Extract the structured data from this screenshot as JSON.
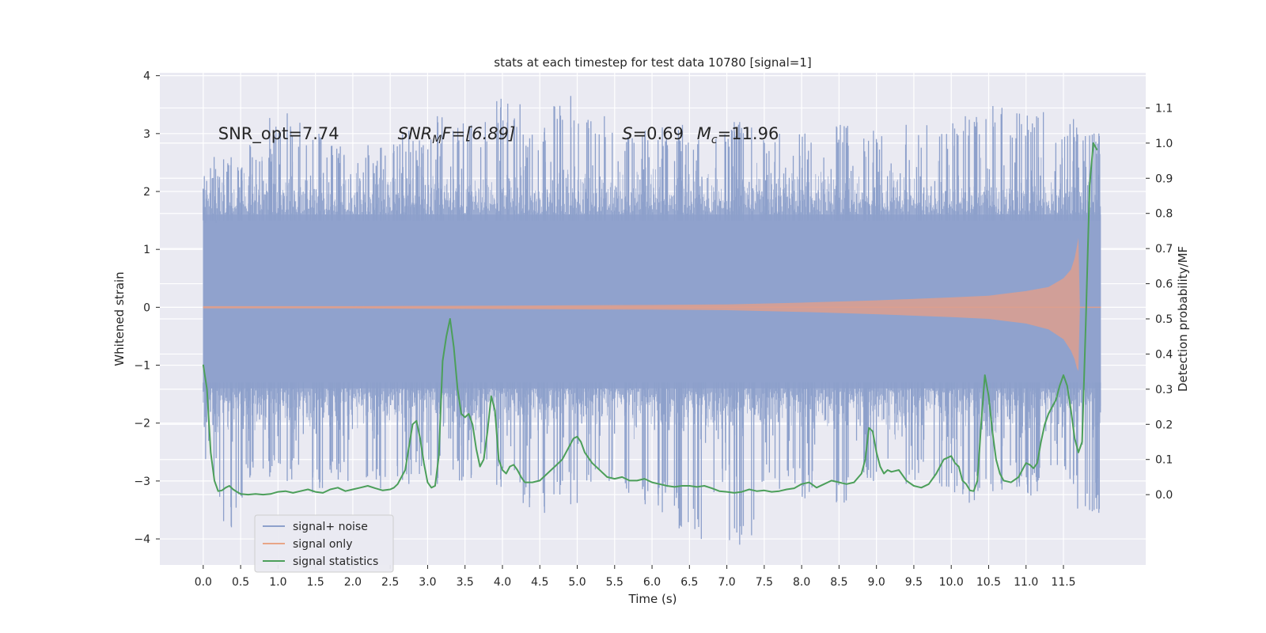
{
  "chart_data": {
    "type": "line",
    "title": "stats at each timestep for test data 10780 [signal=1]",
    "xlabel": "Time (s)",
    "ylabel": "Whitened strain",
    "ylabel_right": "Detection probability/MF",
    "xlim": [
      -0.58,
      12.6
    ],
    "ylim": [
      -4.45,
      4.05
    ],
    "ylim_right": [
      -0.2,
      1.2
    ],
    "xticks": [
      0.0,
      0.5,
      1.0,
      1.5,
      2.0,
      2.5,
      3.0,
      3.5,
      4.0,
      4.5,
      5.0,
      5.5,
      6.0,
      6.5,
      7.0,
      7.5,
      8.0,
      8.5,
      9.0,
      9.5,
      10.0,
      10.5,
      11.0,
      11.5
    ],
    "xtick_labels": [
      "0.0",
      "0.5",
      "1.0",
      "1.5",
      "2.0",
      "2.5",
      "3.0",
      "3.5",
      "4.0",
      "4.5",
      "5.0",
      "5.5",
      "6.0",
      "6.5",
      "7.0",
      "7.5",
      "8.0",
      "8.5",
      "9.0",
      "9.5",
      "10.0",
      "10.5",
      "11.0",
      "11.5"
    ],
    "yticks": [
      4,
      3,
      2,
      1,
      0,
      -1,
      -2,
      -3,
      -4
    ],
    "ytick_labels": [
      "4",
      "3",
      "2",
      "1",
      "0",
      "−1",
      "−2",
      "−3",
      "−4"
    ],
    "yticks_right": [
      1.1,
      1.0,
      0.9,
      0.8,
      0.7,
      0.6,
      0.5,
      0.4,
      0.3,
      0.2,
      0.1,
      0.0
    ],
    "ytick_right_labels": [
      "1.1",
      "1.0",
      "0.9",
      "0.8",
      "0.7",
      "0.6",
      "0.5",
      "0.4",
      "0.3",
      "0.2",
      "0.1",
      "0.0"
    ],
    "annotations": [
      {
        "text": "SNR_opt=7.74",
        "x": 0.2,
        "y": 2.9
      },
      {
        "text": "SNR",
        "sub": "M",
        "rest": "F=[6.89]",
        "x": 2.6,
        "y": 2.9
      },
      {
        "text": "S",
        "rest": "=0.69",
        "x": 5.6,
        "y": 2.9
      },
      {
        "text": "M",
        "sub": "c",
        "rest": "=11.96",
        "x": 6.6,
        "y": 2.9
      }
    ],
    "legend": {
      "position": "lower-left",
      "entries": [
        {
          "label": "signal+ noise",
          "color": "#8da0cb"
        },
        {
          "label": "signal only",
          "color": "#e8a587"
        },
        {
          "label": "signal statistics",
          "color": "#4c9f5a"
        }
      ]
    },
    "grid": true,
    "series": [
      {
        "name": "signal+ noise",
        "axis": "left",
        "style": "dense-noise-band",
        "t_range": [
          0.0,
          12.0
        ],
        "core_band": [
          -1.4,
          1.6
        ],
        "extreme_range": [
          -4.1,
          3.7
        ],
        "extreme_samples": [
          [
            0.0,
            1.4,
            -3.05
          ],
          [
            0.03,
            2.4,
            -2.2
          ],
          [
            0.35,
            2.6,
            -3.8
          ],
          [
            0.75,
            2.85,
            -3.0
          ],
          [
            1.05,
            3.35,
            -3.0
          ],
          [
            1.45,
            3.2,
            -3.2
          ],
          [
            1.85,
            2.9,
            -3.0
          ],
          [
            2.3,
            2.8,
            -3.2
          ],
          [
            2.65,
            3.05,
            -3.05
          ],
          [
            3.0,
            2.9,
            -2.9
          ],
          [
            3.3,
            3.3,
            -3.05
          ],
          [
            3.65,
            3.2,
            -2.95
          ],
          [
            4.1,
            3.6,
            -3.1
          ],
          [
            4.45,
            3.1,
            -3.55
          ],
          [
            4.85,
            3.65,
            -3.4
          ],
          [
            5.3,
            3.3,
            -3.1
          ],
          [
            5.8,
            3.05,
            -3.4
          ],
          [
            6.25,
            3.15,
            -3.6
          ],
          [
            6.5,
            3.0,
            -4.0
          ],
          [
            6.95,
            3.2,
            -3.2
          ],
          [
            7.2,
            3.2,
            -4.1
          ],
          [
            7.65,
            3.05,
            -3.2
          ],
          [
            8.05,
            3.0,
            -3.3
          ],
          [
            8.55,
            3.15,
            -3.4
          ],
          [
            9.0,
            3.05,
            -3.0
          ],
          [
            9.55,
            3.2,
            -3.1
          ],
          [
            9.95,
            3.0,
            -3.1
          ],
          [
            10.2,
            3.3,
            -3.45
          ],
          [
            10.5,
            3.5,
            -3.2
          ],
          [
            10.95,
            3.35,
            -3.1
          ],
          [
            11.1,
            3.55,
            -3.25
          ],
          [
            11.5,
            3.25,
            -3.05
          ],
          [
            11.85,
            3.0,
            -3.5
          ],
          [
            11.98,
            3.0,
            -3.55
          ]
        ]
      },
      {
        "name": "signal only",
        "axis": "left",
        "style": "chirp-envelope",
        "t": [
          0.0,
          2.0,
          4.0,
          6.0,
          7.0,
          8.0,
          9.0,
          10.0,
          10.5,
          11.0,
          11.3,
          11.5,
          11.6,
          11.65,
          11.68,
          11.7,
          11.72,
          12.0
        ],
        "upper": [
          0.02,
          0.02,
          0.03,
          0.04,
          0.05,
          0.08,
          0.12,
          0.17,
          0.2,
          0.28,
          0.35,
          0.5,
          0.65,
          0.85,
          1.05,
          1.2,
          0.0,
          0.0
        ],
        "lower": [
          -0.02,
          -0.02,
          -0.03,
          -0.04,
          -0.05,
          -0.08,
          -0.12,
          -0.17,
          -0.2,
          -0.28,
          -0.38,
          -0.55,
          -0.75,
          -0.9,
          -1.05,
          -1.1,
          0.0,
          0.0
        ]
      },
      {
        "name": "signal statistics",
        "axis": "right",
        "style": "line",
        "x": [
          0.0,
          0.05,
          0.1,
          0.15,
          0.2,
          0.25,
          0.3,
          0.35,
          0.4,
          0.45,
          0.5,
          0.6,
          0.7,
          0.8,
          0.9,
          1.0,
          1.1,
          1.2,
          1.3,
          1.4,
          1.5,
          1.6,
          1.7,
          1.8,
          1.9,
          2.0,
          2.1,
          2.2,
          2.3,
          2.4,
          2.5,
          2.55,
          2.6,
          2.7,
          2.8,
          2.85,
          2.9,
          2.95,
          3.0,
          3.05,
          3.1,
          3.15,
          3.2,
          3.25,
          3.3,
          3.35,
          3.4,
          3.45,
          3.5,
          3.55,
          3.6,
          3.65,
          3.7,
          3.75,
          3.8,
          3.85,
          3.9,
          3.95,
          4.0,
          4.05,
          4.1,
          4.15,
          4.2,
          4.25,
          4.3,
          4.4,
          4.5,
          4.6,
          4.7,
          4.8,
          4.9,
          4.95,
          5.0,
          5.05,
          5.1,
          5.2,
          5.3,
          5.4,
          5.5,
          5.6,
          5.7,
          5.8,
          5.9,
          6.0,
          6.1,
          6.2,
          6.3,
          6.4,
          6.5,
          6.6,
          6.7,
          6.8,
          6.9,
          7.0,
          7.1,
          7.2,
          7.3,
          7.4,
          7.5,
          7.6,
          7.7,
          7.8,
          7.9,
          8.0,
          8.1,
          8.2,
          8.3,
          8.4,
          8.5,
          8.6,
          8.7,
          8.8,
          8.85,
          8.9,
          8.95,
          9.0,
          9.05,
          9.1,
          9.15,
          9.2,
          9.3,
          9.4,
          9.5,
          9.6,
          9.7,
          9.8,
          9.9,
          10.0,
          10.05,
          10.1,
          10.15,
          10.2,
          10.25,
          10.3,
          10.35,
          10.4,
          10.45,
          10.5,
          10.55,
          10.6,
          10.65,
          10.7,
          10.8,
          10.9,
          11.0,
          11.05,
          11.1,
          11.15,
          11.2,
          11.25,
          11.3,
          11.35,
          11.4,
          11.45,
          11.5,
          11.55,
          11.6,
          11.65,
          11.7,
          11.75,
          11.8,
          11.85,
          11.9,
          11.95
        ],
        "y": [
          0.37,
          0.3,
          0.12,
          0.04,
          0.01,
          0.012,
          0.02,
          0.025,
          0.015,
          0.008,
          0.002,
          0.0,
          0.002,
          0.0,
          0.002,
          0.008,
          0.01,
          0.005,
          0.01,
          0.015,
          0.008,
          0.005,
          0.015,
          0.02,
          0.01,
          0.015,
          0.02,
          0.025,
          0.018,
          0.012,
          0.015,
          0.02,
          0.03,
          0.07,
          0.2,
          0.21,
          0.16,
          0.09,
          0.035,
          0.02,
          0.025,
          0.11,
          0.38,
          0.45,
          0.5,
          0.42,
          0.3,
          0.23,
          0.22,
          0.23,
          0.2,
          0.13,
          0.08,
          0.1,
          0.18,
          0.28,
          0.24,
          0.1,
          0.07,
          0.06,
          0.08,
          0.085,
          0.07,
          0.05,
          0.035,
          0.035,
          0.04,
          0.06,
          0.08,
          0.1,
          0.14,
          0.16,
          0.165,
          0.15,
          0.12,
          0.09,
          0.07,
          0.05,
          0.045,
          0.05,
          0.04,
          0.04,
          0.045,
          0.035,
          0.03,
          0.025,
          0.022,
          0.025,
          0.025,
          0.022,
          0.025,
          0.018,
          0.01,
          0.008,
          0.005,
          0.008,
          0.015,
          0.01,
          0.012,
          0.008,
          0.01,
          0.015,
          0.018,
          0.03,
          0.035,
          0.02,
          0.03,
          0.04,
          0.035,
          0.03,
          0.035,
          0.06,
          0.1,
          0.19,
          0.18,
          0.12,
          0.08,
          0.06,
          0.07,
          0.065,
          0.07,
          0.04,
          0.025,
          0.02,
          0.03,
          0.06,
          0.1,
          0.11,
          0.09,
          0.08,
          0.04,
          0.03,
          0.012,
          0.01,
          0.04,
          0.2,
          0.34,
          0.28,
          0.18,
          0.1,
          0.06,
          0.04,
          0.035,
          0.05,
          0.09,
          0.085,
          0.075,
          0.09,
          0.15,
          0.2,
          0.23,
          0.25,
          0.27,
          0.31,
          0.34,
          0.31,
          0.24,
          0.16,
          0.12,
          0.15,
          0.5,
          0.88,
          1.0,
          0.98
        ]
      }
    ]
  }
}
